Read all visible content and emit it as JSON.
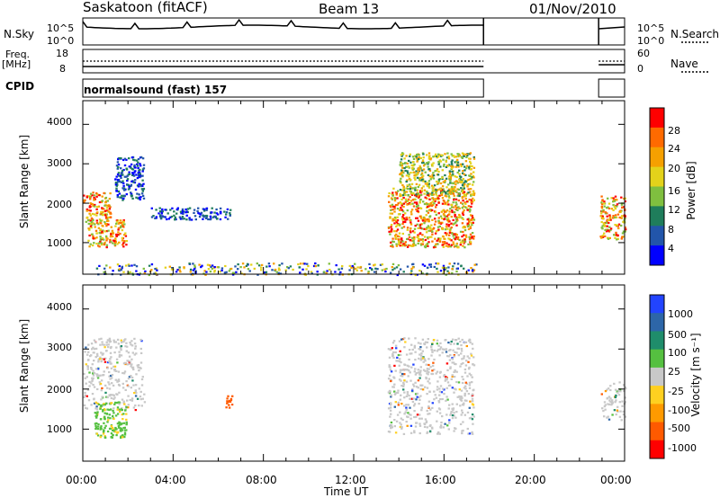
{
  "header": {
    "station": "Saskatoon (fitACF)",
    "beam": "Beam 13",
    "date": "01/Nov/2010"
  },
  "top_panels": {
    "nsky_label": "N.Sky",
    "nsky_ticks": [
      "10^5",
      "10^0"
    ],
    "nsearch_label": "N.Search",
    "nsearch_ticks": [
      "10^5",
      "10^0"
    ],
    "freq_label": "Freq.",
    "freq_unit": "[MHz]",
    "freq_ticks": [
      "18",
      "8"
    ],
    "nave_label": "Nave",
    "nave_ticks": [
      "60",
      "0"
    ],
    "cpid_label": "CPID",
    "cpid_value": "normalsound (fast) 157"
  },
  "chart_data": [
    {
      "type": "heatmap",
      "panel": "power",
      "ylabel": "Slant Range [km]",
      "xlabel": "",
      "ylim": [
        200,
        4600
      ],
      "yticks": [
        "1000",
        "2000",
        "3000",
        "4000"
      ],
      "xlim": [
        0,
        24
      ],
      "colorbar": {
        "label": "Power [dB]",
        "ticks": [
          "4",
          "8",
          "12",
          "16",
          "20",
          "24",
          "28"
        ],
        "colors": [
          "#0000ff",
          "#2255aa",
          "#1f7d5b",
          "#7fbf3f",
          "#e3d21a",
          "#f5a000",
          "#ff6a00",
          "#ff0000"
        ]
      },
      "regions": [
        {
          "t": [
            0.0,
            1.2
          ],
          "range": [
            1500,
            2300
          ],
          "level": "high"
        },
        {
          "t": [
            0.2,
            1.9
          ],
          "range": [
            900,
            1600
          ],
          "level": "high"
        },
        {
          "t": [
            1.4,
            2.7
          ],
          "range": [
            2100,
            3200
          ],
          "level": "low"
        },
        {
          "t": [
            3.0,
            6.5
          ],
          "range": [
            1600,
            1900
          ],
          "level": "low"
        },
        {
          "t": [
            13.5,
            17.3
          ],
          "range": [
            900,
            2400
          ],
          "level": "high"
        },
        {
          "t": [
            14.0,
            17.3
          ],
          "range": [
            2200,
            3300
          ],
          "level": "mid"
        },
        {
          "t": [
            22.9,
            24.0
          ],
          "range": [
            1100,
            2200
          ],
          "level": "high"
        },
        {
          "t": [
            0.5,
            17.5
          ],
          "range": [
            200,
            500
          ],
          "level": "ground"
        }
      ]
    },
    {
      "type": "heatmap",
      "panel": "velocity",
      "ylabel": "Slant Range [km]",
      "xlabel": "Time UT",
      "ylim": [
        200,
        4600
      ],
      "yticks": [
        "1000",
        "2000",
        "3000",
        "4000"
      ],
      "xlim": [
        0,
        24
      ],
      "xticks": [
        "00:00",
        "04:00",
        "08:00",
        "12:00",
        "16:00",
        "20:00",
        "00:00"
      ],
      "colorbar": {
        "label": "Velocity [m s⁻¹]",
        "ticks": [
          "1000",
          "500",
          "100",
          "25",
          "-25",
          "-100",
          "-500",
          "-1000"
        ],
        "colors": [
          "#2244ff",
          "#2d66a8",
          "#1f8d6b",
          "#55c040",
          "#c8c8c8",
          "#ffd020",
          "#ff9a00",
          "#ff5a00",
          "#ff0000"
        ]
      },
      "regions": [
        {
          "t": [
            0.0,
            2.7
          ],
          "range": [
            1500,
            3300
          ],
          "level": "ground"
        },
        {
          "t": [
            0.5,
            1.9
          ],
          "range": [
            800,
            1700
          ],
          "level": "green"
        },
        {
          "t": [
            13.5,
            17.3
          ],
          "range": [
            900,
            3300
          ],
          "level": "ground"
        },
        {
          "t": [
            22.9,
            24.0
          ],
          "range": [
            1200,
            2200
          ],
          "level": "ground"
        },
        {
          "t": [
            6.3,
            6.6
          ],
          "range": [
            1500,
            1900
          ],
          "level": "orange"
        }
      ]
    }
  ]
}
